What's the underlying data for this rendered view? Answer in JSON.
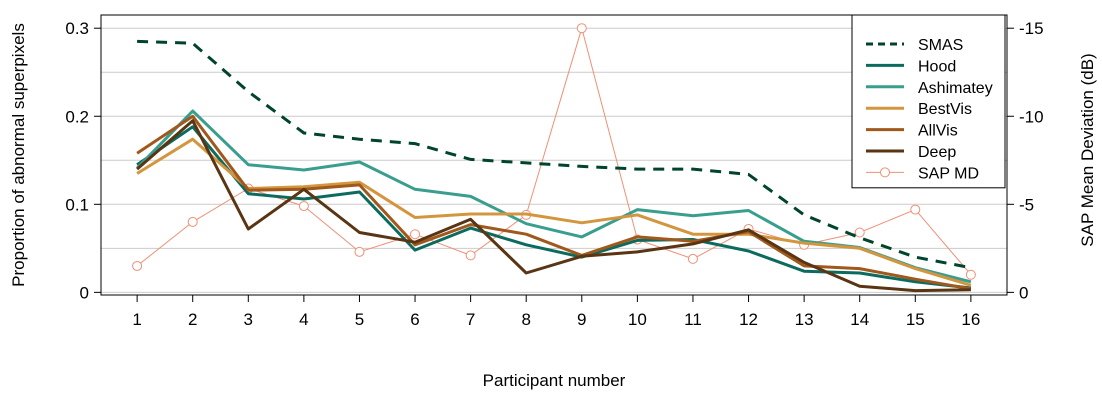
{
  "chart_data": {
    "type": "line",
    "title": "",
    "xlabel": "Participant number",
    "ylabel": "Proportion of abnormal superpixels",
    "y2label": "SAP Mean Deviation (dB)",
    "x": [
      1,
      2,
      3,
      4,
      5,
      6,
      7,
      8,
      9,
      10,
      11,
      12,
      13,
      14,
      15,
      16
    ],
    "x_ticks": [
      "1",
      "2",
      "3",
      "4",
      "5",
      "6",
      "7",
      "8",
      "9",
      "10",
      "11",
      "12",
      "13",
      "14",
      "15",
      "16"
    ],
    "xlim": [
      0.35,
      16.65
    ],
    "ylim": [
      -0.003,
      0.315
    ],
    "y_ticks": [
      0,
      0.1,
      0.2,
      0.3
    ],
    "y_tick_labels": [
      "0",
      "0.1",
      "0.2",
      "0.3"
    ],
    "y2lim": [
      0.15,
      -15.75
    ],
    "y2_ticks": [
      0,
      -5,
      -10,
      -15
    ],
    "y2_tick_labels": [
      "0",
      "-5",
      "-10",
      "-15"
    ],
    "grid": true,
    "gridlines": [
      0,
      0.05,
      0.1,
      0.15,
      0.2,
      0.25,
      0.3
    ],
    "legend_position": "top-right",
    "series": [
      {
        "name": "SMAS",
        "axis": "left",
        "color": "#00442e",
        "style": "dashed",
        "marker": "none",
        "values": [
          0.285,
          0.283,
          0.228,
          0.181,
          0.174,
          0.169,
          0.151,
          0.147,
          0.143,
          0.14,
          0.14,
          0.134,
          0.088,
          0.062,
          0.04,
          0.028
        ]
      },
      {
        "name": "Hood",
        "axis": "left",
        "color": "#0b6b5e",
        "style": "solid",
        "marker": "none",
        "values": [
          0.145,
          0.188,
          0.112,
          0.106,
          0.114,
          0.048,
          0.073,
          0.054,
          0.04,
          0.059,
          0.06,
          0.047,
          0.024,
          0.022,
          0.012,
          0.005
        ]
      },
      {
        "name": "Ashimatey",
        "axis": "left",
        "color": "#3a9e8f",
        "style": "solid",
        "marker": "none",
        "values": [
          0.141,
          0.206,
          0.145,
          0.139,
          0.148,
          0.117,
          0.109,
          0.078,
          0.063,
          0.094,
          0.087,
          0.093,
          0.058,
          0.051,
          0.028,
          0.012
        ]
      },
      {
        "name": "BestVis",
        "axis": "left",
        "color": "#d4953f",
        "style": "solid",
        "marker": "none",
        "values": [
          0.135,
          0.174,
          0.118,
          0.12,
          0.125,
          0.085,
          0.089,
          0.089,
          0.079,
          0.088,
          0.066,
          0.066,
          0.056,
          0.05,
          0.027,
          0.008
        ]
      },
      {
        "name": "AllVis",
        "axis": "left",
        "color": "#a0581c",
        "style": "solid",
        "marker": "none",
        "values": [
          0.158,
          0.2,
          0.116,
          0.117,
          0.122,
          0.054,
          0.077,
          0.066,
          0.042,
          0.063,
          0.058,
          0.069,
          0.03,
          0.027,
          0.015,
          0.004
        ]
      },
      {
        "name": "Deep",
        "axis": "left",
        "color": "#5a3513",
        "style": "solid",
        "marker": "none",
        "values": [
          0.14,
          0.195,
          0.072,
          0.117,
          0.068,
          0.057,
          0.083,
          0.022,
          0.041,
          0.046,
          0.055,
          0.071,
          0.034,
          0.007,
          0.002,
          0.003
        ]
      },
      {
        "name": "SAP MD",
        "axis": "right",
        "color": "#f08f76",
        "style": "solid",
        "marker": "circle",
        "values": [
          -1.5,
          -4,
          -5.9,
          -4.9,
          -2.3,
          -3.3,
          -2.1,
          -4.4,
          -15,
          -3,
          -1.9,
          -3.6,
          -2.7,
          -3.4,
          -4.7,
          -1
        ]
      }
    ]
  }
}
